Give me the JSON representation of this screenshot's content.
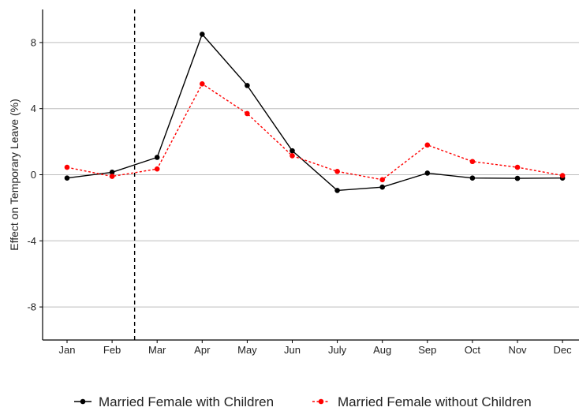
{
  "chart_data": {
    "type": "line",
    "categories": [
      "Jan",
      "Feb",
      "Mar",
      "Apr",
      "May",
      "Jun",
      "July",
      "Aug",
      "Sep",
      "Oct",
      "Nov",
      "Dec"
    ],
    "ylabel": "Effect on Temporary Leave  (%)",
    "xlabel": "",
    "ylim": [
      -10,
      10
    ],
    "yticks": [
      -8,
      -4,
      0,
      4,
      8
    ],
    "ytick_labels": [
      "-8",
      "-4",
      "0",
      "4",
      "8"
    ],
    "grid": "horizontal",
    "legend_position": "bottom",
    "vline_after_category": "Feb",
    "series": [
      {
        "name": "Married Female with Children",
        "color": "#000000",
        "line_style": "solid",
        "values": [
          -0.2,
          0.15,
          1.05,
          8.5,
          5.4,
          1.45,
          -0.95,
          -0.75,
          0.1,
          -0.2,
          -0.22,
          -0.2
        ]
      },
      {
        "name": "Married Female without Children",
        "color": "#ff0000",
        "line_style": "dotted",
        "values": [
          0.45,
          -0.1,
          0.35,
          5.5,
          3.7,
          1.15,
          0.2,
          -0.3,
          1.8,
          0.8,
          0.45,
          -0.05
        ]
      }
    ]
  }
}
